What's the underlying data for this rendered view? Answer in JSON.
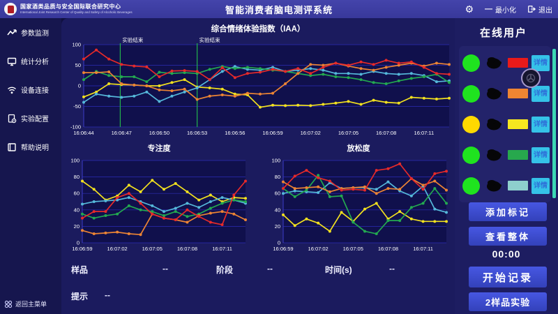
{
  "header": {
    "org_cn": "国家酒类品质与安全国际联合研究中心",
    "org_en": "International Joint Research Center of Quality and Safety of Alcoholic Beverages",
    "title": "智能消费者脑电测评系统",
    "minimize_label": "最小化",
    "exit_label": "退出"
  },
  "sidebar": {
    "items": [
      {
        "label": "参数监测",
        "icon": "trend-icon"
      },
      {
        "label": "统计分析",
        "icon": "monitor-icon"
      },
      {
        "label": "设备连接",
        "icon": "wifi-icon"
      },
      {
        "label": "实验配置",
        "icon": "config-icon"
      },
      {
        "label": "帮助说明",
        "icon": "book-icon"
      }
    ],
    "back_label": "返回主菜单"
  },
  "chart_data": [
    {
      "type": "line",
      "title": "综合情绪体验指数（IAA）",
      "ylim": [
        -100,
        100
      ],
      "y_ticks": [
        100,
        50,
        0,
        -50,
        -100
      ],
      "x_ticks": [
        "16:06:44",
        "16:06:47",
        "16:06:50",
        "16:06:53",
        "16:06:56",
        "16:06:59",
        "16:07:02",
        "16:07:05",
        "16:07:08",
        "16:07:11"
      ],
      "x_tick_step": 3,
      "grid": true,
      "legend": "none",
      "markers": [
        {
          "pos": 2.9,
          "label": "实验结束"
        },
        {
          "pos": 9.0,
          "label": "实验结束"
        }
      ],
      "series": [
        {
          "name": "series-yellow",
          "color": "#f2e11f",
          "values": [
            -27,
            -15,
            5,
            3,
            2,
            0,
            0,
            8,
            15,
            -3,
            -5,
            -8,
            -20,
            -22,
            -52,
            -47,
            -48,
            -47,
            -48,
            -45,
            -42,
            -38,
            -45,
            -35,
            -40,
            -42,
            -28,
            -30,
            -32,
            -30
          ]
        },
        {
          "name": "series-cyan",
          "color": "#55b8da",
          "values": [
            -40,
            -20,
            -25,
            -28,
            -25,
            -15,
            -38,
            -25,
            -15,
            -5,
            15,
            35,
            47,
            40,
            38,
            45,
            35,
            38,
            42,
            38,
            30,
            30,
            28,
            35,
            30,
            28,
            30,
            25,
            10,
            12
          ]
        },
        {
          "name": "series-green",
          "color": "#23a950",
          "values": [
            15,
            35,
            25,
            22,
            22,
            10,
            33,
            30,
            32,
            30,
            40,
            47,
            42,
            45,
            42,
            38,
            35,
            30,
            25,
            28,
            22,
            20,
            15,
            8,
            5,
            12,
            18,
            22,
            28,
            8
          ]
        },
        {
          "name": "series-orange",
          "color": "#ec8434",
          "values": [
            32,
            32,
            34,
            5,
            2,
            0,
            -10,
            -12,
            -8,
            -33,
            -25,
            -22,
            -25,
            -18,
            -20,
            -18,
            5,
            30,
            52,
            50,
            55,
            48,
            42,
            38,
            45,
            50,
            55,
            48,
            55,
            52
          ]
        },
        {
          "name": "series-red",
          "color": "#e62a2a",
          "values": [
            65,
            87,
            65,
            52,
            48,
            46,
            22,
            36,
            37,
            35,
            15,
            44,
            20,
            30,
            33,
            40,
            35,
            42,
            30,
            45,
            55,
            50,
            58,
            52,
            62,
            55,
            58,
            45,
            30,
            28
          ]
        }
      ]
    },
    {
      "type": "line",
      "title": "专注度",
      "ylim": [
        0,
        100
      ],
      "y_ticks": [
        100,
        80,
        60,
        40,
        20,
        0
      ],
      "x_ticks": [
        "16:06:59",
        "16:07:02",
        "16:07:05",
        "16:07:08",
        "16:07:11"
      ],
      "x_tick_step": 3,
      "grid": true,
      "legend": "none",
      "markers": [],
      "series": [
        {
          "name": "series-yellow",
          "color": "#f2e11f",
          "values": [
            75,
            65,
            52,
            57,
            70,
            62,
            76,
            65,
            72,
            62,
            52,
            58,
            50,
            55,
            54
          ]
        },
        {
          "name": "series-cyan",
          "color": "#55b8da",
          "values": [
            47,
            50,
            51,
            52,
            55,
            50,
            45,
            38,
            42,
            48,
            43,
            50,
            55,
            52,
            48
          ]
        },
        {
          "name": "series-green",
          "color": "#23a950",
          "values": [
            35,
            30,
            33,
            35,
            45,
            40,
            38,
            33,
            38,
            32,
            35,
            42,
            48,
            52,
            50
          ]
        },
        {
          "name": "series-orange",
          "color": "#ec8434",
          "values": [
            15,
            11,
            12,
            13,
            11,
            10,
            35,
            30,
            28,
            25,
            33,
            36,
            38,
            35,
            28
          ]
        },
        {
          "name": "series-red",
          "color": "#e62a2a",
          "values": [
            30,
            38,
            38,
            55,
            60,
            48,
            35,
            30,
            28,
            40,
            32,
            25,
            22,
            58,
            75
          ]
        }
      ]
    },
    {
      "type": "line",
      "title": "放松度",
      "ylim": [
        0,
        100
      ],
      "y_ticks": [
        100,
        80,
        60,
        40,
        20,
        0
      ],
      "x_ticks": [
        "16:06:59",
        "16:07:02",
        "16:07:05",
        "16:07:08",
        "16:07:11"
      ],
      "x_tick_step": 3,
      "grid": true,
      "legend": "none",
      "markers": [],
      "series": [
        {
          "name": "series-yellow",
          "color": "#f2e11f",
          "values": [
            34,
            21,
            29,
            24,
            14,
            37,
            26,
            41,
            48,
            29,
            38,
            29,
            26,
            26,
            26
          ]
        },
        {
          "name": "series-cyan",
          "color": "#55b8da",
          "values": [
            60,
            63,
            62,
            61,
            73,
            66,
            67,
            67,
            65,
            74,
            63,
            57,
            69,
            41,
            37
          ]
        },
        {
          "name": "series-green",
          "color": "#23a950",
          "values": [
            66,
            56,
            64,
            82,
            56,
            57,
            25,
            14,
            11,
            27,
            27,
            43,
            48,
            66,
            48
          ]
        },
        {
          "name": "series-orange",
          "color": "#ec8434",
          "values": [
            74,
            66,
            67,
            68,
            62,
            66,
            67,
            68,
            60,
            66,
            65,
            78,
            70,
            75,
            64
          ]
        },
        {
          "name": "series-red",
          "color": "#e62a2a",
          "values": [
            66,
            81,
            88,
            79,
            75,
            64,
            65,
            64,
            88,
            90,
            96,
            78,
            65,
            84,
            87
          ]
        }
      ]
    }
  ],
  "info": {
    "sample_label": "样品",
    "sample_value": "--",
    "phase_label": "阶段",
    "phase_value": "--",
    "time_label": "时间(s)",
    "time_value": "--",
    "hint_label": "提示",
    "hint_value": "--"
  },
  "online_users": {
    "title": "在线用户",
    "detail_label": "详情",
    "users": [
      {
        "status_color": "#1fe31f",
        "bar_color": "#ea1a1a"
      },
      {
        "status_color": "#1fe31f",
        "bar_color": "#ef8532"
      },
      {
        "status_color": "#ffd900",
        "bar_color": "#f6e71f"
      },
      {
        "status_color": "#1fe31f",
        "bar_color": "#27a84d"
      },
      {
        "status_color": "#1fe31f",
        "bar_color": "#8ecfcd"
      }
    ]
  },
  "controls": {
    "add_marker_label": "添加标记",
    "view_overall_label": "查看整体",
    "timer_value": "00:00",
    "start_record_label": "开始记录",
    "experiment_label": "2样品实验"
  },
  "colors": {
    "accent_button": "#3c4bd0",
    "detail_button": "#35c2e8",
    "marker_line": "#22b24c",
    "scrollbar": "#3cd8b4"
  }
}
